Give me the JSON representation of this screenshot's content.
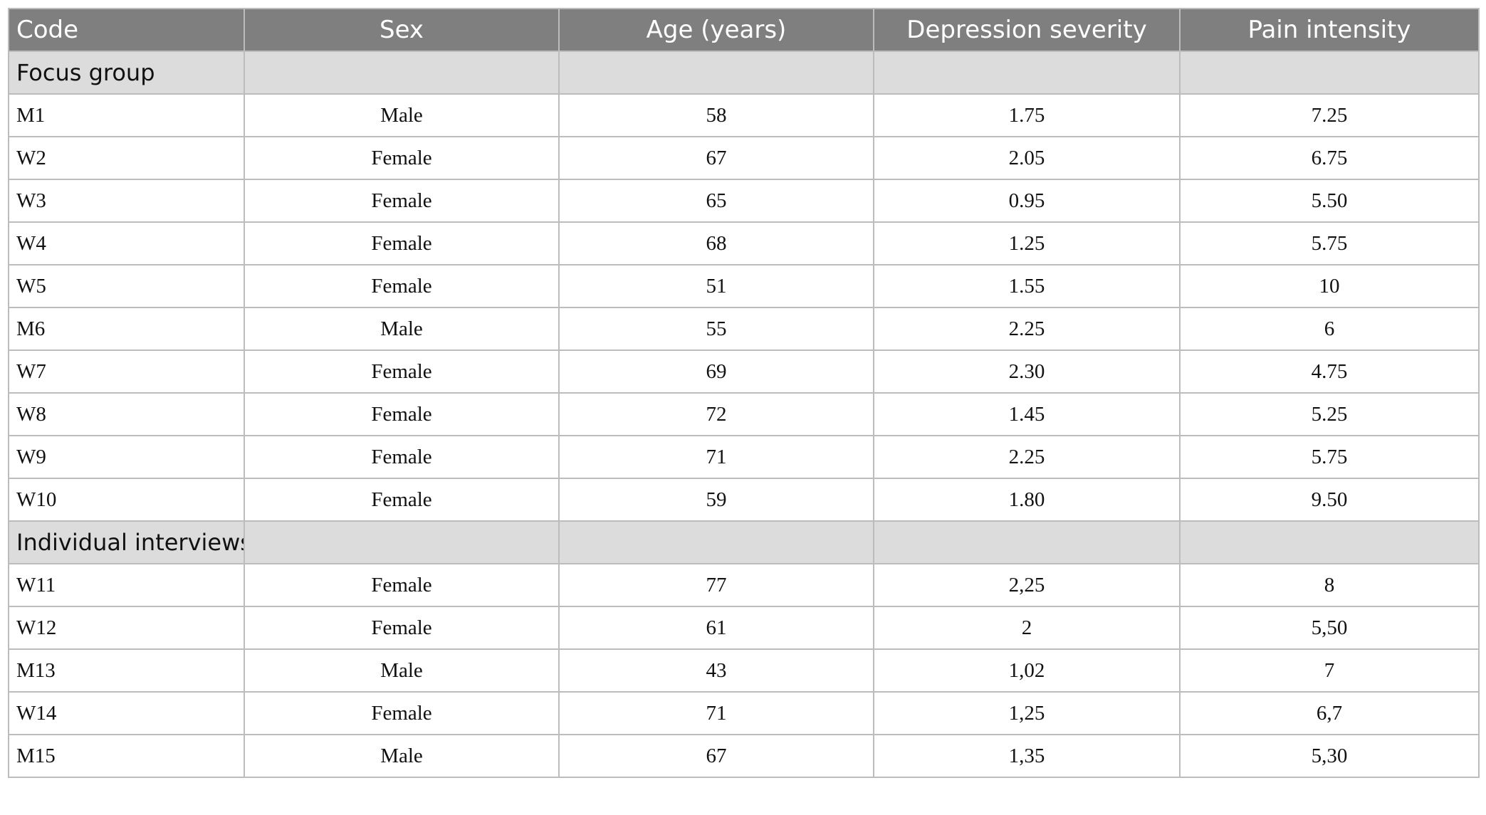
{
  "columns": [
    "Code",
    "Sex",
    "Age (years)",
    "Depression severity",
    "Pain intensity"
  ],
  "sections": [
    {
      "title": "Focus group",
      "rows": [
        [
          "M1",
          "Male",
          "58",
          "1.75",
          "7.25"
        ],
        [
          "W2",
          "Female",
          "67",
          "2.05",
          "6.75"
        ],
        [
          "W3",
          "Female",
          "65",
          "0.95",
          "5.50"
        ],
        [
          "W4",
          "Female",
          "68",
          "1.25",
          "5.75"
        ],
        [
          "W5",
          "Female",
          "51",
          "1.55",
          "10"
        ],
        [
          "M6",
          "Male",
          "55",
          "2.25",
          "6"
        ],
        [
          "W7",
          "Female",
          "69",
          "2.30",
          "4.75"
        ],
        [
          "W8",
          "Female",
          "72",
          "1.45",
          "5.25"
        ],
        [
          "W9",
          "Female",
          "71",
          "2.25",
          "5.75"
        ],
        [
          "W10",
          "Female",
          "59",
          "1.80",
          "9.50"
        ]
      ]
    },
    {
      "title": "Individual interviews",
      "rows": [
        [
          "W11",
          "Female",
          "77",
          "2,25",
          "8"
        ],
        [
          "W12",
          "Female",
          "61",
          "2",
          "5,50"
        ],
        [
          "M13",
          "Male",
          "43",
          "1,02",
          "7"
        ],
        [
          "W14",
          "Female",
          "71",
          "1,25",
          "6,7"
        ],
        [
          "M15",
          "Male",
          "67",
          "1,35",
          "5,30"
        ]
      ]
    }
  ]
}
